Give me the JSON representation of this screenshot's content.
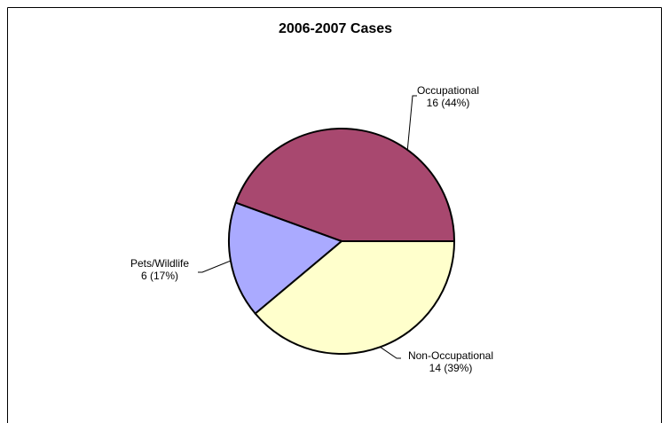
{
  "chart_data": {
    "type": "pie",
    "title": "2006-2007 Cases",
    "categories": [
      "Occupational",
      "Pets/Wildlife",
      "Non-Occupational"
    ],
    "values": [
      16,
      6,
      14
    ],
    "value_labels": [
      "16 (44%)",
      "6 (17%)",
      "14 (39%)"
    ],
    "colors": [
      "#a8486f",
      "#aaaaff",
      "#ffffcc"
    ]
  }
}
